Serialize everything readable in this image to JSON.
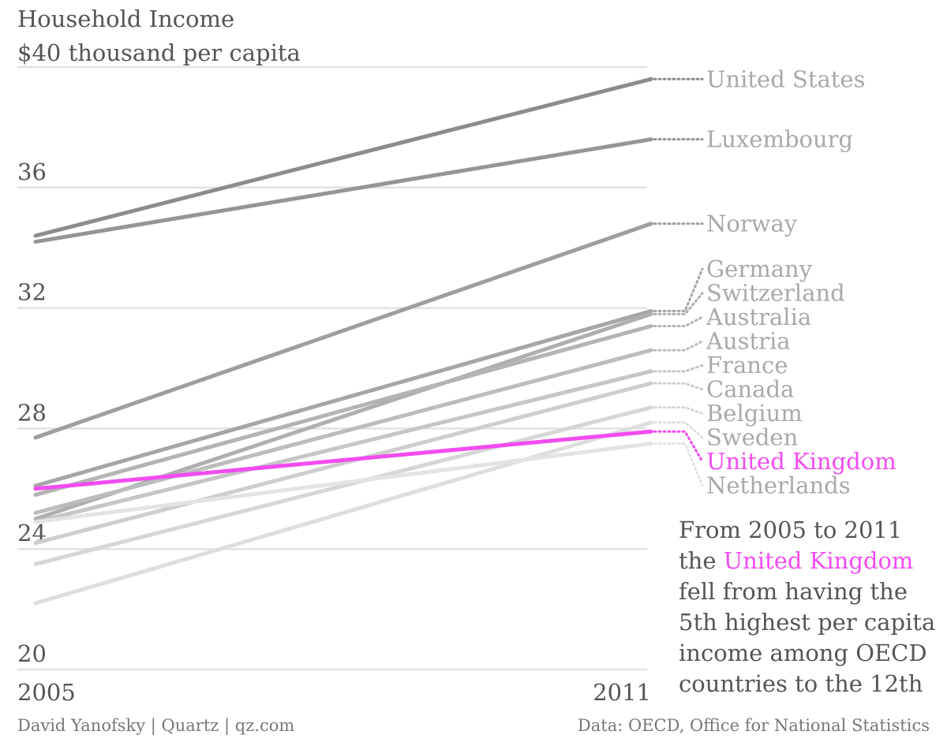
{
  "chart_data": {
    "type": "line",
    "title": "Household Income",
    "subtitle": "$40 thousand per capita",
    "x": [
      "2005",
      "2011"
    ],
    "ylim": [
      20,
      40
    ],
    "yticks": [
      20,
      24,
      28,
      32,
      36,
      40
    ],
    "ytick_labels": [
      "20",
      "24",
      "28",
      "32",
      "36",
      ""
    ],
    "grid": true,
    "highlight_color": "#f24cf0",
    "series": [
      {
        "name": "United States",
        "values": [
          34.4,
          39.6
        ],
        "color": "#8c8c8c"
      },
      {
        "name": "Luxembourg",
        "values": [
          34.2,
          37.6
        ],
        "color": "#959595"
      },
      {
        "name": "Norway",
        "values": [
          27.7,
          34.8
        ],
        "color": "#9e9e9e"
      },
      {
        "name": "Germany",
        "values": [
          26.1,
          31.9
        ],
        "color": "#a6a6a6"
      },
      {
        "name": "Switzerland",
        "values": [
          25.0,
          31.8
        ],
        "color": "#afafaf"
      },
      {
        "name": "Australia",
        "values": [
          25.8,
          31.4
        ],
        "color": "#b4b4b4"
      },
      {
        "name": "Austria",
        "values": [
          25.2,
          30.6
        ],
        "color": "#bcbcbc"
      },
      {
        "name": "France",
        "values": [
          24.9,
          29.9
        ],
        "color": "#c6c6c6"
      },
      {
        "name": "Canada",
        "values": [
          24.2,
          29.5
        ],
        "color": "#cecece"
      },
      {
        "name": "Belgium",
        "values": [
          23.5,
          28.7
        ],
        "color": "#d6d6d6"
      },
      {
        "name": "Sweden",
        "values": [
          22.2,
          28.2
        ],
        "color": "#dedede"
      },
      {
        "name": "United Kingdom",
        "values": [
          26.0,
          27.9
        ],
        "color": "#f24cf0",
        "highlight": true
      },
      {
        "name": "Netherlands",
        "values": [
          24.9,
          27.5
        ],
        "color": "#e3e3e3"
      }
    ]
  },
  "note": {
    "before": "From 2005 to 2011 the ",
    "highlight": "United Kingdom",
    "after": " fell from having the 5th highest per capita income among OECD countries to the 12th"
  },
  "footer": {
    "credit": "David Yanofsky | Quartz | qz.com",
    "source": "Data: OECD, Office for National Statistics"
  }
}
